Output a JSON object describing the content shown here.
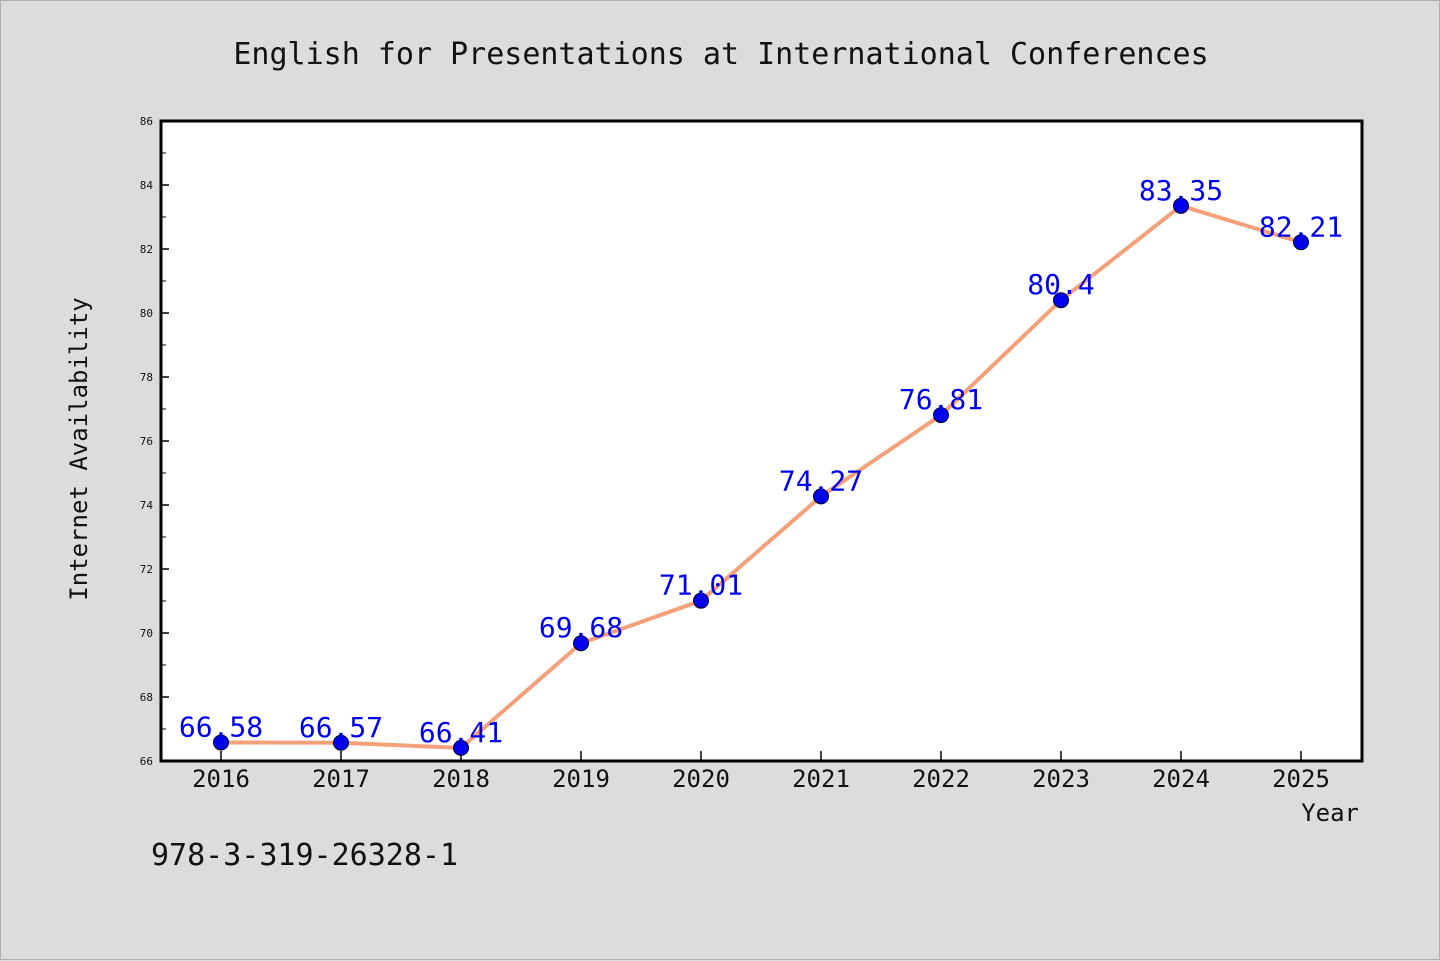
{
  "chart_data": {
    "type": "line",
    "title": "English for Presentations at International Conferences",
    "xlabel": "Year",
    "ylabel": "Internet Availability",
    "categories": [
      "2016",
      "2017",
      "2018",
      "2019",
      "2020",
      "2021",
      "2022",
      "2023",
      "2024",
      "2025"
    ],
    "values": [
      66.58,
      66.57,
      66.41,
      69.68,
      71.01,
      74.27,
      76.81,
      80.4,
      83.35,
      82.21
    ],
    "data_labels": [
      "66.58",
      "66.57",
      "66.41",
      "69.68",
      "71.01",
      "74.27",
      "76.81",
      "80.4",
      "83.35",
      "82.21"
    ],
    "ylim": [
      66,
      86
    ],
    "yticks": [
      "66",
      "68",
      "70",
      "72",
      "74",
      "76",
      "78",
      "80",
      "82",
      "84",
      "86"
    ],
    "grid": false,
    "line_color": "#f4a07a",
    "marker_color": "#0000ee",
    "label_color": "#0000ee",
    "plot_background": "#ffffff",
    "figure_background": "#dcdcdc"
  },
  "footnote": "978-3-319-26328-1"
}
